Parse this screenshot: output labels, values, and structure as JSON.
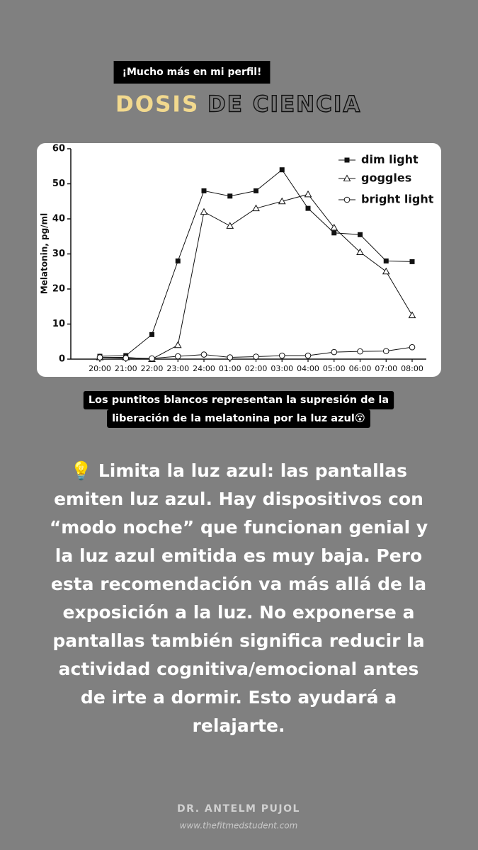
{
  "banner": "¡Mucho más en mi perfil!",
  "title": {
    "highlight": "DOSIS",
    "rest": "DE CIENCIA"
  },
  "chart_data": {
    "type": "line",
    "ylabel": "Melatonin, pg/ml",
    "categories": [
      "20:00",
      "21:00",
      "22:00",
      "23:00",
      "24:00",
      "01:00",
      "02:00",
      "03:00",
      "04:00",
      "05:00",
      "06:00",
      "07:00",
      "08:00"
    ],
    "ylim": [
      0,
      60
    ],
    "yticks": [
      0,
      10,
      20,
      30,
      40,
      50,
      60
    ],
    "legend": "top-right",
    "series": [
      {
        "name": "dim light",
        "color": "#111111",
        "marker": "square",
        "values": [
          0.8,
          1,
          7,
          28,
          48,
          46.5,
          48,
          54,
          43,
          36,
          35.5,
          28,
          27.8
        ]
      },
      {
        "name": "goggles",
        "color": "#111111",
        "marker": "triangle",
        "values": [
          0.5,
          0.5,
          0,
          4,
          42,
          38,
          43,
          45,
          47,
          37.5,
          30.5,
          25,
          12.5
        ]
      },
      {
        "name": "bright light",
        "color": "#111111",
        "marker": "circle",
        "values": [
          0.5,
          0.3,
          0.2,
          0.8,
          1.3,
          0.5,
          0.7,
          1,
          1,
          2,
          2.2,
          2.3,
          3.4
        ]
      }
    ]
  },
  "caption": [
    "Los puntitos blancos representan la supresión de la",
    "liberación de la melatonina por la luz azul😵"
  ],
  "body": [
    "💡 Limita la luz azul: las pantallas",
    "emiten luz azul. Hay dispositivos con",
    "“modo noche” que funcionan genial y",
    "la luz azul emitida es muy baja. Pero",
    "esta recomendación va más allá de la",
    "exposición a la luz. No exponerse a",
    "pantallas también significa reducir la",
    "actividad cognitiva/emocional antes",
    "de irte a dormir. Esto ayudará a",
    "relajarte."
  ],
  "footer": {
    "name": "DR. ANTELM PUJOL",
    "site": "www.thefitmedstudent.com"
  }
}
